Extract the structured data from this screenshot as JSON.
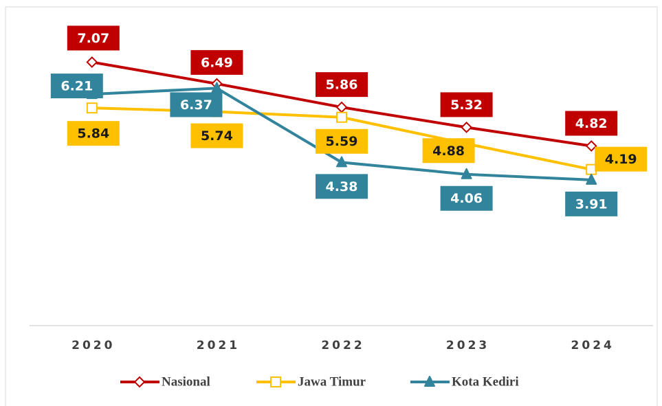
{
  "chart_data": {
    "type": "line",
    "categories": [
      "2020",
      "2021",
      "2022",
      "2023",
      "2024"
    ],
    "series": [
      {
        "name": "Nasional",
        "color": "#c00000",
        "marker": "diamond",
        "values": [
          7.07,
          6.49,
          5.86,
          5.32,
          4.82
        ]
      },
      {
        "name": "Jawa Timur",
        "color": "#ffc000",
        "marker": "square",
        "values": [
          5.84,
          5.74,
          5.59,
          4.88,
          4.19
        ]
      },
      {
        "name": "Kota Kediri",
        "color": "#31849b",
        "marker": "triangle",
        "values": [
          6.21,
          6.37,
          4.38,
          4.06,
          3.91
        ]
      }
    ],
    "ylim": [
      0,
      8
    ],
    "grid": false,
    "legend": "bottom"
  }
}
